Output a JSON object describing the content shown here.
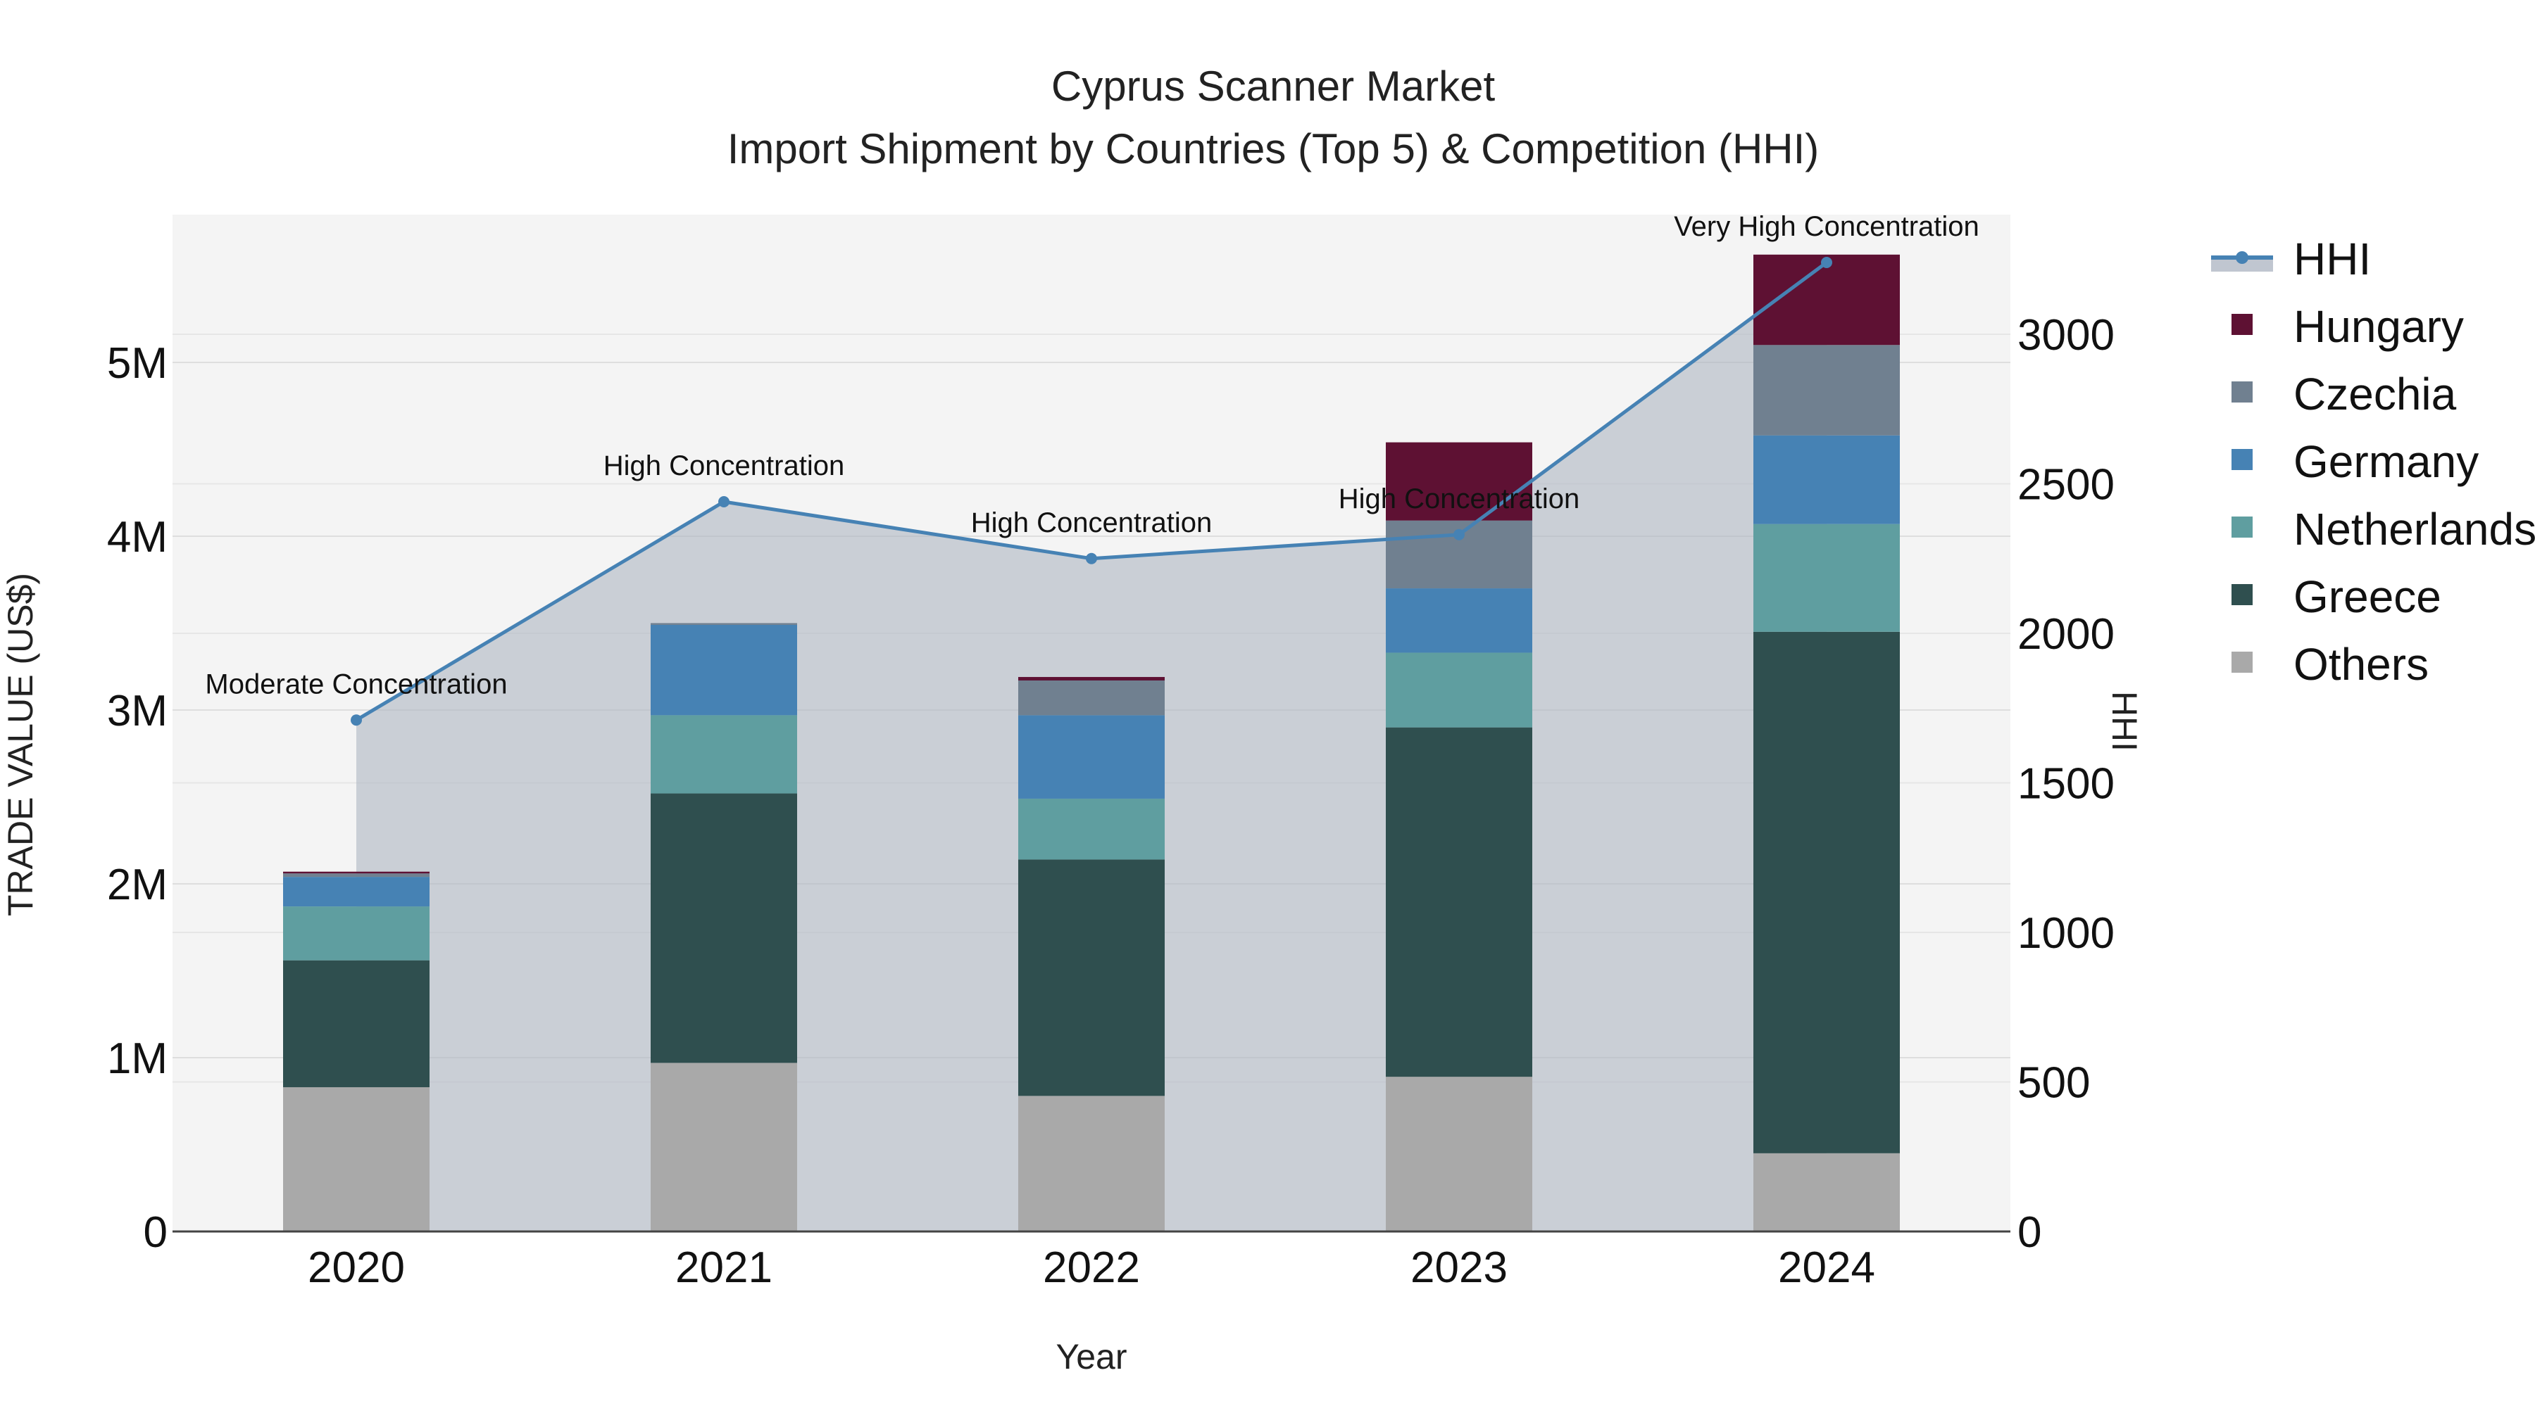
{
  "chart_data": {
    "type": "bar",
    "stacked": true,
    "title": "Cyprus Scanner Market",
    "subtitle": "Import Shipment by Countries (Top 5) & Competition (HHI)",
    "xlabel": "Year",
    "ylabel": "TRADE VALUE (US$)",
    "y2label": "HHI",
    "categories": [
      "2020",
      "2021",
      "2022",
      "2023",
      "2024"
    ],
    "ylim": [
      0,
      5850000
    ],
    "y2lim": [
      0,
      3400
    ],
    "yticks": [
      0,
      1000000,
      2000000,
      3000000,
      4000000,
      5000000
    ],
    "ytick_labels": [
      "0",
      "1M",
      "2M",
      "3M",
      "4M",
      "5M"
    ],
    "y2ticks": [
      0,
      500,
      1000,
      1500,
      2000,
      2500,
      3000
    ],
    "y2tick_labels": [
      "0",
      "500",
      "1000",
      "1500",
      "2000",
      "2500",
      "3000"
    ],
    "series": [
      {
        "name": "Others",
        "color": "#A9A9A9",
        "values": [
          830000,
          970000,
          780000,
          890000,
          450000
        ]
      },
      {
        "name": "Greece",
        "color": "#2F4F4F",
        "values": [
          730000,
          1550000,
          1360000,
          2010000,
          3000000
        ]
      },
      {
        "name": "Netherlands",
        "color": "#5F9EA0",
        "values": [
          310000,
          450000,
          350000,
          430000,
          620000
        ]
      },
      {
        "name": "Germany",
        "color": "#4682B4",
        "values": [
          170000,
          520000,
          480000,
          370000,
          510000
        ]
      },
      {
        "name": "Czechia",
        "color": "#708090",
        "values": [
          20000,
          10000,
          200000,
          390000,
          520000
        ]
      },
      {
        "name": "Hungary",
        "color": "#5E1133",
        "values": [
          10000,
          0,
          20000,
          450000,
          520000
        ]
      }
    ],
    "hhi": {
      "name": "HHI",
      "color": "#4682B4",
      "values": [
        1710,
        2440,
        2250,
        2330,
        3240
      ],
      "labels": [
        "Moderate Concentration",
        "High Concentration",
        "High Concentration",
        "High Concentration",
        "Very High Concentration"
      ]
    },
    "legend": {
      "position": "right",
      "entries": [
        "HHI",
        "Hungary",
        "Czechia",
        "Germany",
        "Netherlands",
        "Greece",
        "Others"
      ]
    }
  }
}
